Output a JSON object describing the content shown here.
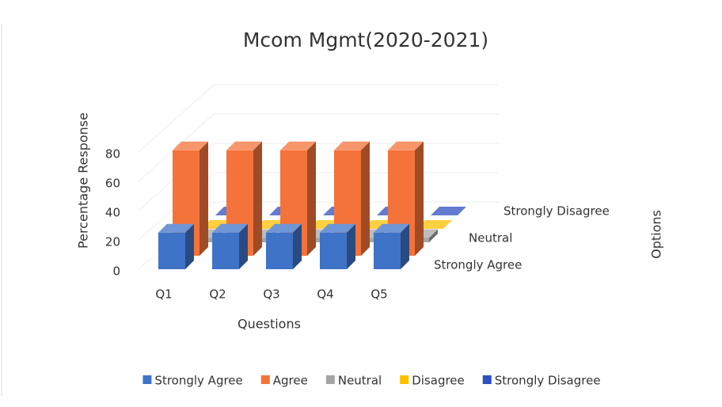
{
  "chart_data": {
    "type": "bar3d",
    "title": "Mcom Mgmt(2020-2021)",
    "x_label": "Questions",
    "y_label": "Percentage Response",
    "z_label": "Options",
    "categories": [
      "Q1",
      "Q2",
      "Q3",
      "Q4",
      "Q5"
    ],
    "series": [
      {
        "name": "Strongly Agree",
        "color": "#3f73c8",
        "values": [
          25,
          25,
          25,
          25,
          25
        ]
      },
      {
        "name": "Agree",
        "color": "#f4733a",
        "values": [
          72,
          72,
          72,
          72,
          72
        ]
      },
      {
        "name": "Neutral",
        "color": "#a5a5a5",
        "values": [
          3,
          3,
          3,
          3,
          3
        ]
      },
      {
        "name": "Disagree",
        "color": "#ffc000",
        "values": [
          0,
          0,
          0,
          0,
          0
        ]
      },
      {
        "name": "Strongly Disagree",
        "color": "#2f4fc0",
        "values": [
          0,
          0,
          0,
          0,
          0
        ]
      }
    ],
    "zticks": [
      {
        "value": 0,
        "label": "Strongly Agree"
      },
      {
        "value": 2,
        "label": "Neutral"
      },
      {
        "value": 4,
        "label": "Strongly Disagree"
      }
    ],
    "ylim": [
      0,
      80
    ],
    "yticks": [
      0,
      20,
      40,
      60,
      80
    ],
    "grid": true,
    "legend": "bottom"
  }
}
